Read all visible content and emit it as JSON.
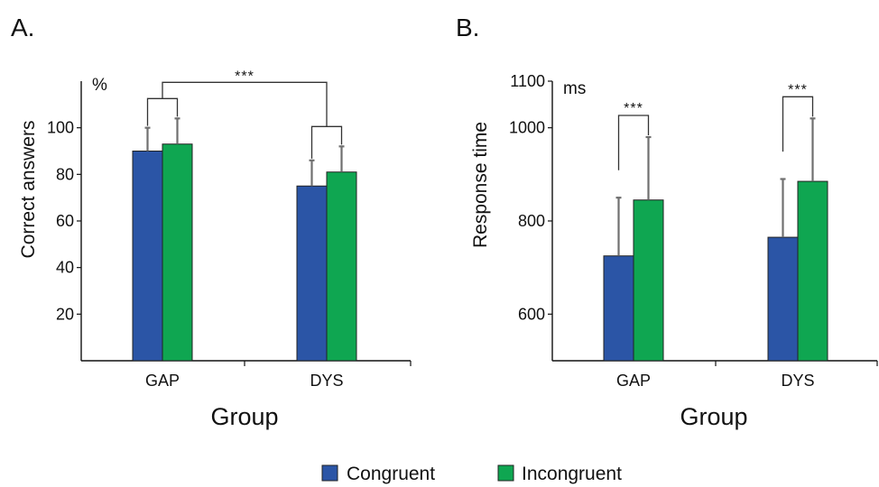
{
  "colors": {
    "congruent": "#2b55a6",
    "incongruent": "#0fa651",
    "error_bar": "#707070"
  },
  "legend": {
    "items": [
      {
        "label": "Congruent",
        "color": "#2b55a6"
      },
      {
        "label": "Incongruent",
        "color": "#0fa651"
      }
    ]
  },
  "chart_data": [
    {
      "type": "bar",
      "panel_label": "A.",
      "categories": [
        "GAP",
        "DYS"
      ],
      "series": [
        {
          "name": "Congruent",
          "values": [
            90,
            75
          ],
          "error": [
            10,
            11
          ]
        },
        {
          "name": "Incongruent",
          "values": [
            93,
            81
          ],
          "error": [
            11,
            11
          ]
        }
      ],
      "xlabel": "Group",
      "ylabel": "Correct answers",
      "unit": "%",
      "ylim": [
        0,
        120
      ],
      "yticks": [
        20,
        40,
        60,
        80,
        100
      ],
      "annotations": [
        {
          "text": "***",
          "between": "groups"
        }
      ],
      "grid": false
    },
    {
      "type": "bar",
      "panel_label": "B.",
      "categories": [
        "GAP",
        "DYS"
      ],
      "series": [
        {
          "name": "Congruent",
          "values": [
            725,
            765
          ],
          "error": [
            125,
            125
          ]
        },
        {
          "name": "Incongruent",
          "values": [
            845,
            885
          ],
          "error": [
            135,
            135
          ]
        }
      ],
      "xlabel": "Group",
      "ylabel": "Response time",
      "unit": "ms",
      "ylim": [
        500,
        1100
      ],
      "yticks": [
        600,
        800,
        1000,
        1100
      ],
      "annotations": [
        {
          "text": "***",
          "between": "conditions",
          "category": "GAP"
        },
        {
          "text": "***",
          "between": "conditions",
          "category": "DYS"
        }
      ],
      "grid": false
    }
  ]
}
